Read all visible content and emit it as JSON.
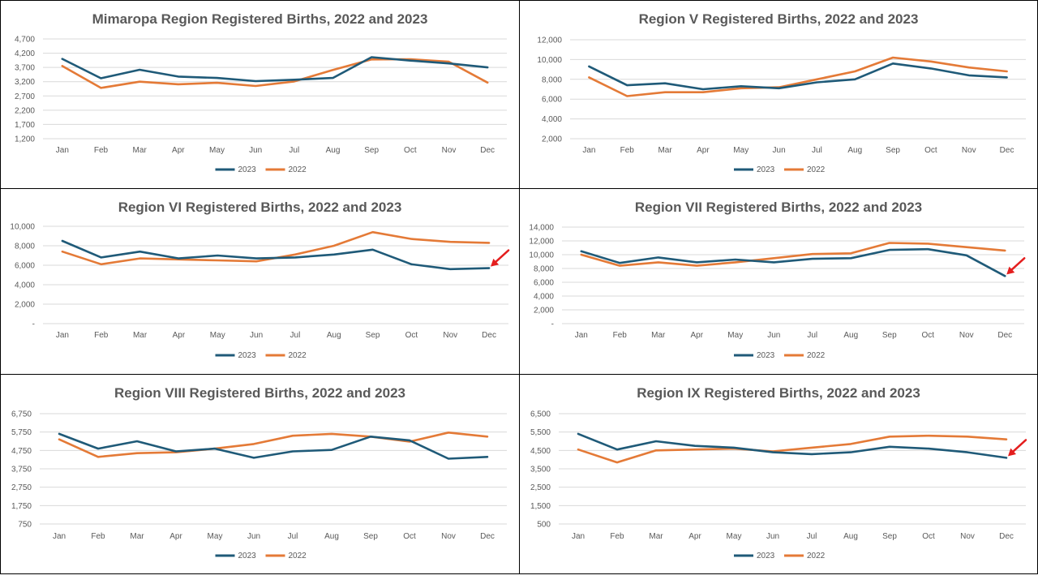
{
  "colors": {
    "s2023": "#1f5a78",
    "s2022": "#e47a37",
    "grid": "#d9d9d9",
    "arrow": "#e41e1e",
    "text": "#595959"
  },
  "chart_data": [
    {
      "type": "line",
      "title": "Mimaropa Region  Registered Births, 2022 and 2023",
      "x": [
        "Jan",
        "Feb",
        "Mar",
        "Apr",
        "May",
        "Jun",
        "Jul",
        "Aug",
        "Sep",
        "Oct",
        "Nov",
        "Dec"
      ],
      "yticks": [
        "1,200",
        "1,700",
        "2,200",
        "2,700",
        "3,200",
        "3,700",
        "4,200",
        "4,700"
      ],
      "ylim": [
        1200,
        4700
      ],
      "series": [
        {
          "name": "2023",
          "values": [
            4000,
            3320,
            3620,
            3380,
            3330,
            3220,
            3270,
            3330,
            4060,
            3940,
            3840,
            3700
          ]
        },
        {
          "name": "2022",
          "values": [
            3750,
            2980,
            3200,
            3110,
            3160,
            3050,
            3210,
            3610,
            3980,
            3990,
            3900,
            3170
          ]
        }
      ],
      "arrow": false
    },
    {
      "type": "line",
      "title": "Region V  Registered Births, 2022 and 2023",
      "x": [
        "Jan",
        "Feb",
        "Mar",
        "Apr",
        "May",
        "Jun",
        "Jul",
        "Aug",
        "Sep",
        "Oct",
        "Nov",
        "Dec"
      ],
      "yticks": [
        "2,000",
        "4,000",
        "6,000",
        "8,000",
        "10,000",
        "12,000"
      ],
      "ylim": [
        2000,
        12000
      ],
      "series": [
        {
          "name": "2023",
          "values": [
            9300,
            7400,
            7600,
            7000,
            7300,
            7100,
            7700,
            8000,
            9600,
            9100,
            8400,
            8200
          ]
        },
        {
          "name": "2022",
          "values": [
            8200,
            6300,
            6700,
            6700,
            7100,
            7200,
            8000,
            8800,
            10200,
            9800,
            9200,
            8800
          ]
        }
      ],
      "arrow": false
    },
    {
      "type": "line",
      "title": "Region VI  Registered Births, 2022 and 2023",
      "x": [
        "Jan",
        "Feb",
        "Mar",
        "Apr",
        "May",
        "Jun",
        "Jul",
        "Aug",
        "Sep",
        "Oct",
        "Nov",
        "Dec"
      ],
      "yticks": [
        "-",
        "2,000",
        "4,000",
        "6,000",
        "8,000",
        "10,000"
      ],
      "ylim": [
        0,
        10000
      ],
      "series": [
        {
          "name": "2023",
          "values": [
            8500,
            6800,
            7400,
            6700,
            7000,
            6700,
            6800,
            7100,
            7600,
            6100,
            5600,
            5700
          ]
        },
        {
          "name": "2022",
          "values": [
            7400,
            6100,
            6700,
            6600,
            6500,
            6400,
            7100,
            8000,
            9400,
            8700,
            8400,
            8300
          ]
        }
      ],
      "arrow": true
    },
    {
      "type": "line",
      "title": "Region VII  Registered Births, 2022 and 2023",
      "x": [
        "Jan",
        "Feb",
        "Mar",
        "Apr",
        "May",
        "Jun",
        "Jul",
        "Aug",
        "Sep",
        "Oct",
        "Nov",
        "Dec"
      ],
      "yticks": [
        "-",
        "2,000",
        "4,000",
        "6,000",
        "8,000",
        "10,000",
        "12,000",
        "14,000"
      ],
      "ylim": [
        0,
        14000
      ],
      "series": [
        {
          "name": "2023",
          "values": [
            10500,
            8800,
            9600,
            8900,
            9300,
            8900,
            9400,
            9500,
            10700,
            10800,
            9900,
            6900
          ]
        },
        {
          "name": "2022",
          "values": [
            10000,
            8400,
            8900,
            8400,
            8900,
            9500,
            10100,
            10200,
            11700,
            11600,
            11100,
            10600
          ]
        }
      ],
      "arrow": true
    },
    {
      "type": "line",
      "title": "Region VIII  Registered Births, 2022 and 2023",
      "x": [
        "Jan",
        "Feb",
        "Mar",
        "Apr",
        "May",
        "Jun",
        "Jul",
        "Aug",
        "Sep",
        "Oct",
        "Nov",
        "Dec"
      ],
      "yticks": [
        "750",
        "1,750",
        "2,750",
        "3,750",
        "4,750",
        "5,750",
        "6,750"
      ],
      "ylim": [
        750,
        6750
      ],
      "series": [
        {
          "name": "2023",
          "values": [
            5650,
            4850,
            5250,
            4700,
            4850,
            4350,
            4700,
            4780,
            5500,
            5300,
            4300,
            4400
          ]
        },
        {
          "name": "2022",
          "values": [
            5350,
            4400,
            4600,
            4650,
            4850,
            5100,
            5550,
            5650,
            5500,
            5230,
            5720,
            5500
          ]
        }
      ],
      "arrow": false
    },
    {
      "type": "line",
      "title": "Region IX  Registered Births, 2022 and 2023",
      "x": [
        "Jan",
        "Feb",
        "Mar",
        "Apr",
        "May",
        "Jun",
        "Jul",
        "Aug",
        "Sep",
        "Oct",
        "Nov",
        "Dec"
      ],
      "yticks": [
        "500",
        "1,500",
        "2,500",
        "3,500",
        "4,500",
        "5,500",
        "6,500"
      ],
      "ylim": [
        500,
        6500
      ],
      "series": [
        {
          "name": "2023",
          "values": [
            5400,
            4550,
            5000,
            4750,
            4650,
            4400,
            4300,
            4400,
            4700,
            4600,
            4400,
            4100
          ]
        },
        {
          "name": "2022",
          "values": [
            4550,
            3850,
            4500,
            4550,
            4600,
            4450,
            4650,
            4850,
            5250,
            5300,
            5250,
            5100
          ]
        }
      ],
      "arrow": true
    }
  ]
}
